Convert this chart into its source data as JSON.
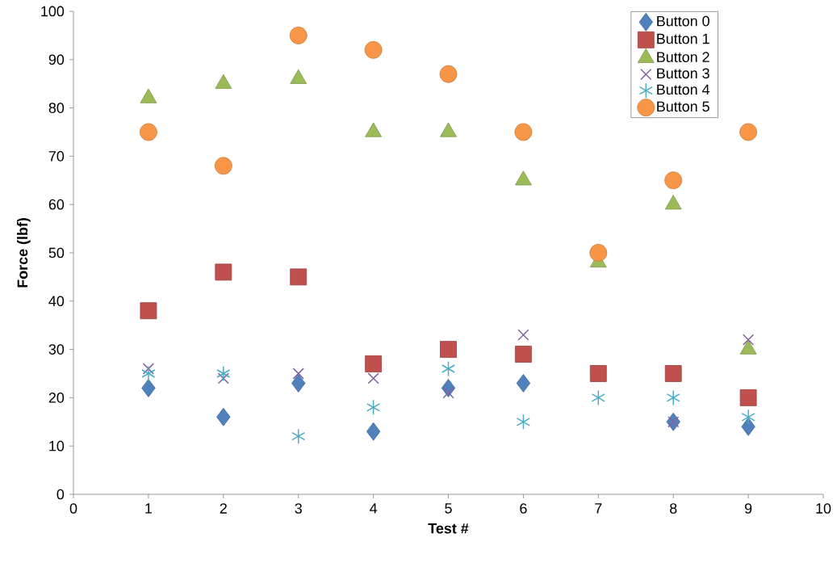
{
  "chart_data": {
    "type": "scatter",
    "xlabel": "Test #",
    "ylabel": "Force (lbf)",
    "x": [
      1,
      2,
      3,
      4,
      5,
      6,
      7,
      8,
      9
    ],
    "series": [
      {
        "name": "Button 0",
        "color": "#4f81bd",
        "marker": "diamond",
        "values": [
          22,
          16,
          23,
          13,
          22,
          23,
          null,
          15,
          14
        ]
      },
      {
        "name": "Button 1",
        "color": "#c0504d",
        "marker": "square",
        "values": [
          38,
          46,
          45,
          27,
          30,
          29,
          25,
          25,
          20
        ]
      },
      {
        "name": "Button 2",
        "color": "#9bbb59",
        "marker": "triangle",
        "values": [
          82,
          85,
          86,
          75,
          75,
          65,
          48,
          60,
          30
        ]
      },
      {
        "name": "Button 3",
        "color": "#8064a2",
        "marker": "cross",
        "values": [
          26,
          24,
          25,
          24,
          21,
          33,
          null,
          15,
          32
        ]
      },
      {
        "name": "Button 4",
        "color": "#4bacc6",
        "marker": "cross",
        "values": [
          25,
          25,
          12,
          18,
          26,
          15,
          20,
          20,
          16
        ]
      },
      {
        "name": "Button 5",
        "color": "#f79646",
        "marker": "circle",
        "values": [
          75,
          68,
          95,
          92,
          87,
          75,
          50,
          65,
          75
        ]
      }
    ],
    "xlim": [
      0,
      10
    ],
    "xticks": [
      0,
      1,
      2,
      3,
      4,
      5,
      6,
      7,
      8,
      9,
      10
    ],
    "ylim": [
      0,
      100
    ],
    "yticks": [
      0,
      10,
      20,
      30,
      40,
      50,
      60,
      70,
      80,
      90,
      100
    ],
    "grid": false,
    "legend": "top right"
  }
}
